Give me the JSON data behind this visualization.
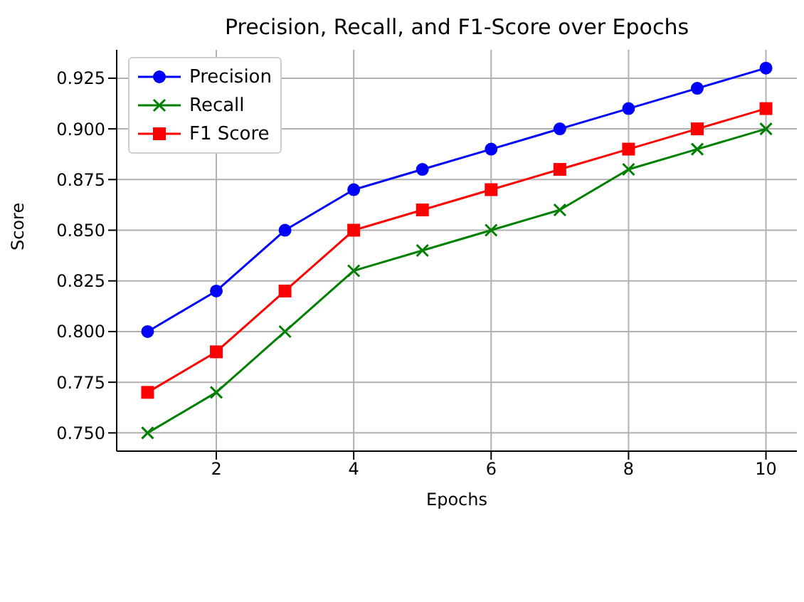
{
  "chart_data": {
    "type": "line",
    "title": "Precision, Recall, and F1-Score over Epochs",
    "xlabel": "Epochs",
    "ylabel": "Score",
    "x": [
      1,
      2,
      3,
      4,
      5,
      6,
      7,
      8,
      9,
      10
    ],
    "series": [
      {
        "name": "Precision",
        "color": "#0000ff",
        "marker": "circle",
        "values": [
          0.8,
          0.82,
          0.85,
          0.87,
          0.88,
          0.89,
          0.9,
          0.91,
          0.92,
          0.93
        ]
      },
      {
        "name": "Recall",
        "color": "#008000",
        "marker": "cross",
        "values": [
          0.75,
          0.77,
          0.8,
          0.83,
          0.84,
          0.85,
          0.86,
          0.88,
          0.89,
          0.9
        ]
      },
      {
        "name": "F1 Score",
        "color": "#ff0000",
        "marker": "square",
        "values": [
          0.77,
          0.79,
          0.82,
          0.85,
          0.86,
          0.87,
          0.88,
          0.89,
          0.9,
          0.91
        ]
      }
    ],
    "xlim": [
      0.55,
      10.45
    ],
    "xticks": [
      2,
      4,
      6,
      8,
      10
    ],
    "ylim": [
      0.741,
      0.939
    ],
    "yticks": [
      {
        "value": 0.75,
        "label": "0.750"
      },
      {
        "value": 0.775,
        "label": "0.775"
      },
      {
        "value": 0.8,
        "label": "0.800"
      },
      {
        "value": 0.825,
        "label": "0.825"
      },
      {
        "value": 0.85,
        "label": "0.850"
      },
      {
        "value": 0.875,
        "label": "0.875"
      },
      {
        "value": 0.9,
        "label": "0.900"
      },
      {
        "value": 0.925,
        "label": "0.925"
      }
    ],
    "grid": true,
    "legend": "top left"
  }
}
